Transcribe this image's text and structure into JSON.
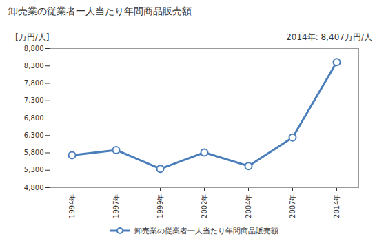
{
  "chart_data": {
    "type": "line",
    "title": "卸売業の従業者一人当たり年間商品販売額",
    "y_label": "[万円/人]",
    "annotation": "2014年: 8,407万円/人",
    "categories": [
      "1994年",
      "1997年",
      "1999年",
      "2002年",
      "2004年",
      "2007年",
      "2014年"
    ],
    "series": [
      {
        "name": "卸売業の従業者一人当たり年間商品販売額",
        "color": "#4a7ebb",
        "marker": "circle",
        "values": [
          5730,
          5880,
          5340,
          5810,
          5420,
          6240,
          8407
        ]
      }
    ],
    "ylim": [
      4800,
      8800
    ],
    "yticks": [
      {
        "value": 4800,
        "label": "4,800"
      },
      {
        "value": 5300,
        "label": "5,300"
      },
      {
        "value": 5800,
        "label": "5,800"
      },
      {
        "value": 6300,
        "label": "6,300"
      },
      {
        "value": 6800,
        "label": "6,800"
      },
      {
        "value": 7300,
        "label": "7,300"
      },
      {
        "value": 7800,
        "label": "7,800"
      },
      {
        "value": 8300,
        "label": "8,300"
      },
      {
        "value": 8800,
        "label": "8,800"
      }
    ],
    "legend": "bottom",
    "grid": false
  }
}
